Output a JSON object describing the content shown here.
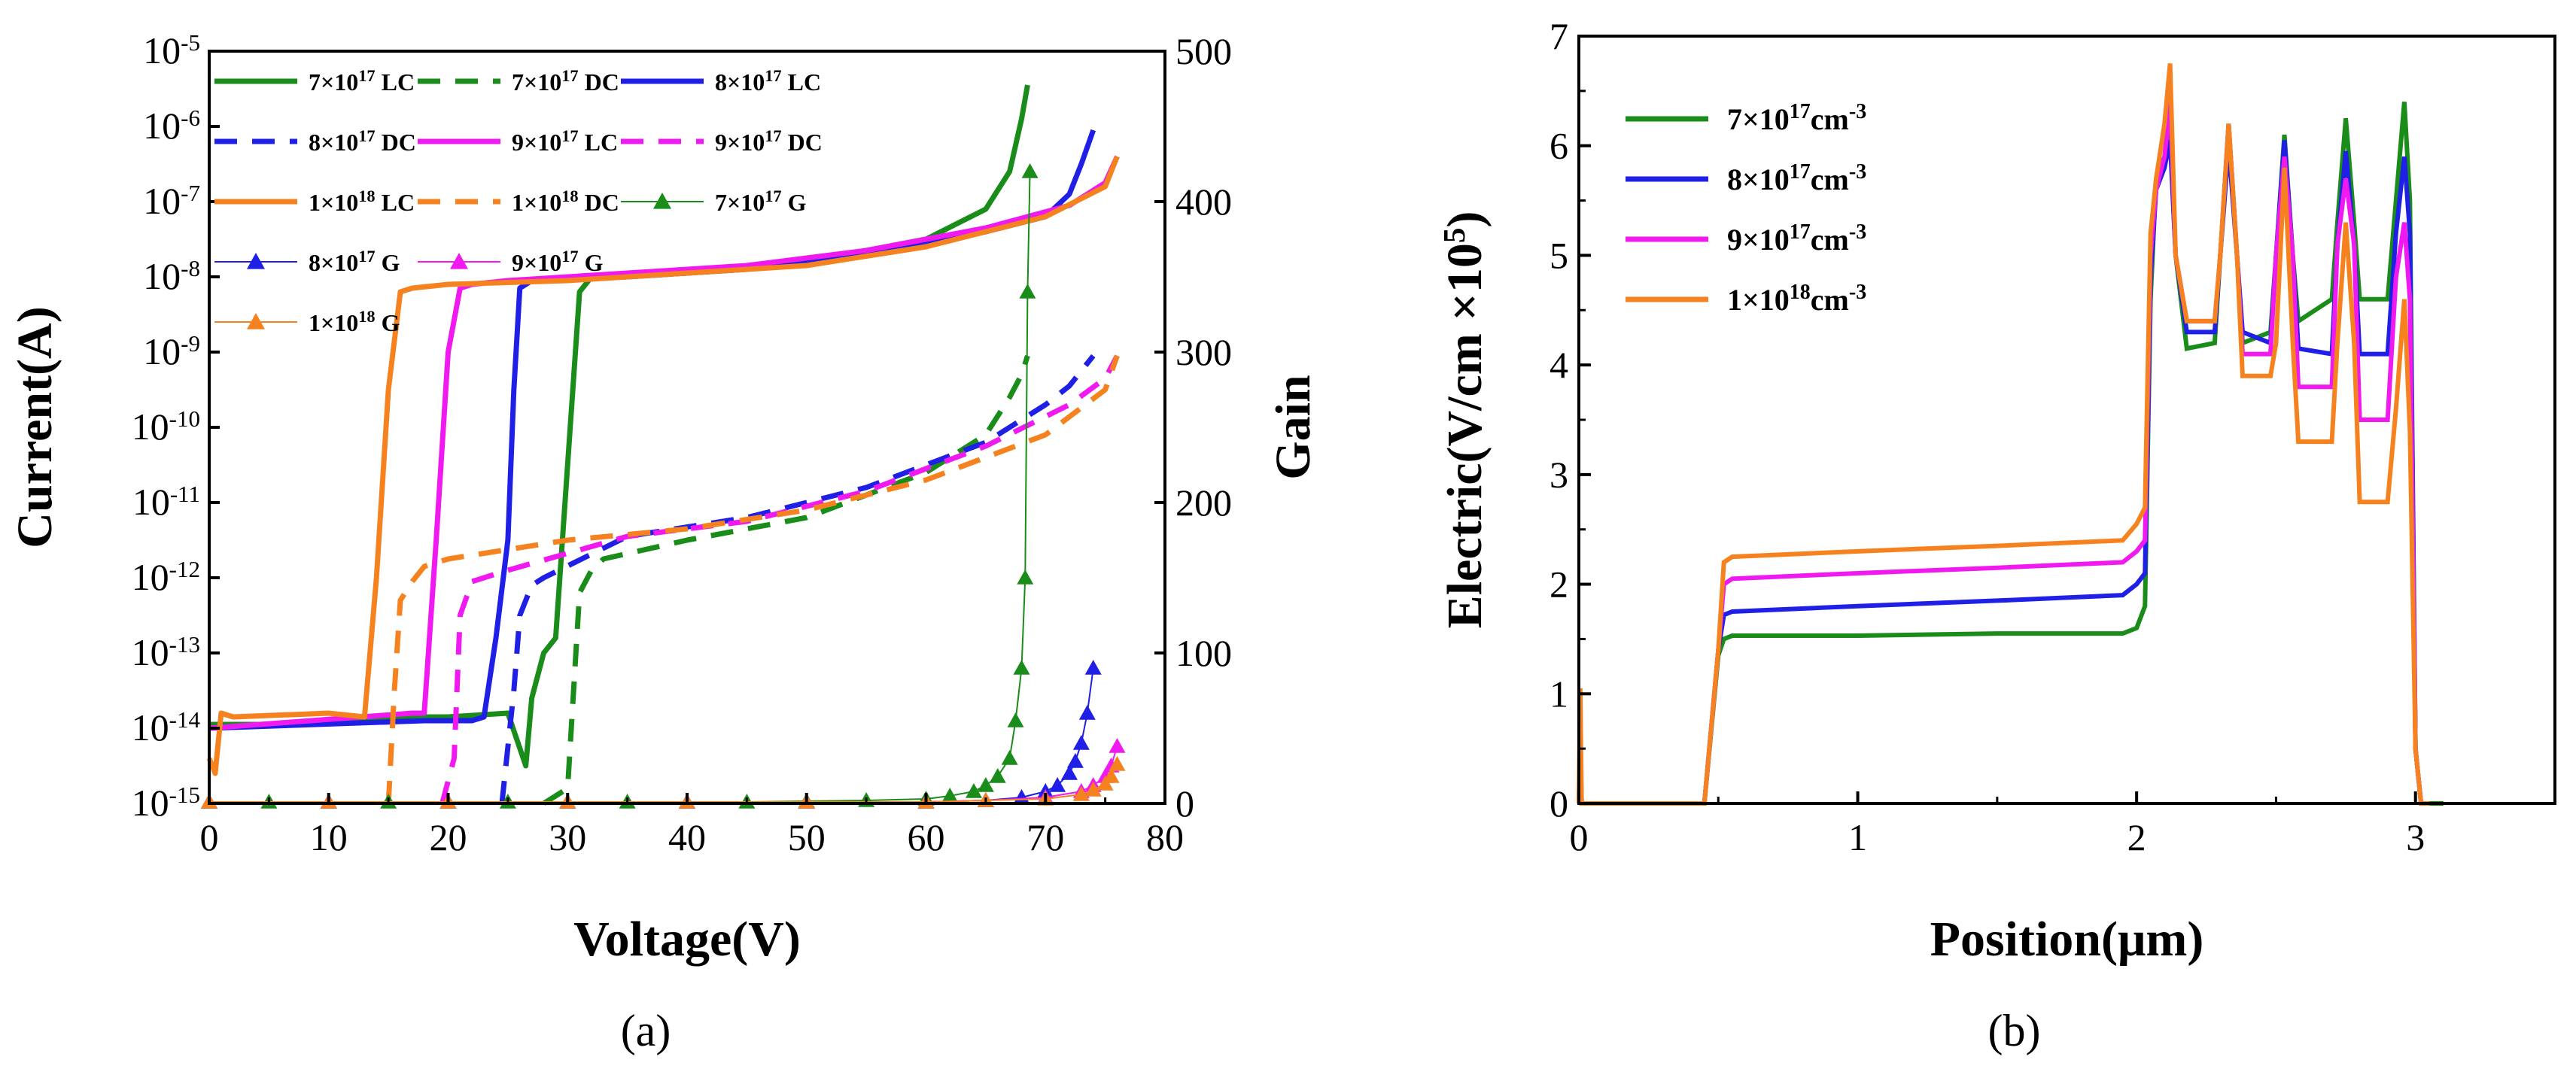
{
  "chart_data": [
    {
      "panel_label": "(a)",
      "type": "line",
      "xlabel": "Voltage(V)",
      "ylabel": "Current(A)",
      "y2label": "Gain",
      "xlim": [
        0,
        80
      ],
      "ylim_log10": [
        -15,
        -5
      ],
      "y2lim": [
        0,
        500
      ],
      "yscale": "log",
      "xticks": [
        "0",
        "10",
        "20",
        "30",
        "40",
        "50",
        "60",
        "70",
        "80"
      ],
      "yticks_exp": [
        "-15",
        "-14",
        "-13",
        "-12",
        "-11",
        "-10",
        "-9",
        "-8",
        "-7",
        "-6",
        "-5"
      ],
      "y2ticks": [
        "0",
        "100",
        "200",
        "300",
        "400",
        "500"
      ],
      "legend_position": "top-left",
      "legend": [
        {
          "base": "7×10",
          "exp": "17",
          "suffix": " LC",
          "color": "#1a8c1a",
          "style": "solid"
        },
        {
          "base": "7×10",
          "exp": "17",
          "suffix": " DC",
          "color": "#1a8c1a",
          "style": "dash"
        },
        {
          "base": "8×10",
          "exp": "17",
          "suffix": " LC",
          "color": "#1f1fe6",
          "style": "solid"
        },
        {
          "base": "8×10",
          "exp": "17",
          "suffix": " DC",
          "color": "#1f1fe6",
          "style": "dash"
        },
        {
          "base": "9×10",
          "exp": "17",
          "suffix": " LC",
          "color": "#f01af0",
          "style": "solid"
        },
        {
          "base": "9×10",
          "exp": "17",
          "suffix": " DC",
          "color": "#f01af0",
          "style": "dash"
        },
        {
          "base": "1×10",
          "exp": "18",
          "suffix": " LC",
          "color": "#f5821f",
          "style": "solid"
        },
        {
          "base": "1×10",
          "exp": "18",
          "suffix": " DC",
          "color": "#f5821f",
          "style": "dash"
        },
        {
          "base": "7×10",
          "exp": "17",
          "suffix": " G",
          "color": "#1a8c1a",
          "style": "triangle"
        },
        {
          "base": "8×10",
          "exp": "17",
          "suffix": " G",
          "color": "#1f1fe6",
          "style": "triangle"
        },
        {
          "base": "9×10",
          "exp": "17",
          "suffix": " G",
          "color": "#f01af0",
          "style": "triangle"
        },
        {
          "base": "1×10",
          "exp": "18",
          "suffix": " G",
          "color": "#f5821f",
          "style": "triangle"
        }
      ],
      "series": [
        {
          "name": "7×10^17 LC",
          "color": "#1a8c1a",
          "style": "solid",
          "x": [
            0,
            5,
            10,
            15,
            20,
            25,
            26.5,
            27,
            28,
            29,
            30,
            31,
            32,
            40,
            50,
            60,
            65,
            67,
            68,
            68.5
          ],
          "y_log10": [
            -13.95,
            -13.95,
            -13.9,
            -13.85,
            -13.85,
            -13.8,
            -14.5,
            -13.6,
            -13,
            -12.8,
            -10.5,
            -8.2,
            -8,
            -7.95,
            -7.8,
            -7.5,
            -7.1,
            -6.6,
            -5.9,
            -5.45
          ]
        },
        {
          "name": "7×10^17 DC",
          "color": "#1a8c1a",
          "style": "dash",
          "x": [
            28,
            30,
            30.5,
            31,
            32,
            33,
            40,
            50,
            60,
            65,
            67,
            68,
            68.5
          ],
          "y_log10": [
            -15,
            -14.8,
            -13.5,
            -12.2,
            -11.9,
            -11.75,
            -11.5,
            -11.2,
            -10.6,
            -10.1,
            -9.6,
            -9.3,
            -9.05
          ]
        },
        {
          "name": "8×10^17 LC",
          "color": "#1f1fe6",
          "style": "solid",
          "x": [
            0,
            18,
            22,
            23,
            24,
            25,
            25.5,
            26,
            27,
            35,
            45,
            55,
            65,
            70,
            72,
            73,
            74
          ],
          "y_log10": [
            -14,
            -13.9,
            -13.9,
            -13.85,
            -12.8,
            -11.5,
            -9.5,
            -8.15,
            -8.05,
            -8,
            -7.9,
            -7.7,
            -7.4,
            -7.2,
            -6.9,
            -6.5,
            -6.05
          ]
        },
        {
          "name": "8×10^17 DC",
          "color": "#1f1fe6",
          "style": "dash",
          "x": [
            24.5,
            25.5,
            26,
            27,
            28,
            35,
            45,
            55,
            65,
            70,
            72,
            74
          ],
          "y_log10": [
            -15,
            -13.5,
            -12.5,
            -12.1,
            -12,
            -11.45,
            -11.2,
            -10.8,
            -10.2,
            -9.7,
            -9.45,
            -9.05
          ]
        },
        {
          "name": "9×10^17 LC",
          "color": "#f01af0",
          "style": "solid",
          "x": [
            0,
            17,
            18,
            19,
            20,
            21,
            22,
            25,
            35,
            45,
            55,
            65,
            72,
            75,
            76
          ],
          "y_log10": [
            -14,
            -13.8,
            -13.8,
            -11.5,
            -9,
            -8.15,
            -8.1,
            -8.05,
            -7.95,
            -7.85,
            -7.65,
            -7.35,
            -7.05,
            -6.75,
            -6.4
          ]
        },
        {
          "name": "9×10^17 DC",
          "color": "#f01af0",
          "style": "dash",
          "x": [
            19.5,
            20.5,
            21,
            22,
            25,
            35,
            45,
            55,
            65,
            72,
            75,
            76
          ],
          "y_log10": [
            -15,
            -14.4,
            -12.5,
            -12.05,
            -11.9,
            -11.45,
            -11.25,
            -10.85,
            -10.25,
            -9.7,
            -9.35,
            -9.05
          ]
        },
        {
          "name": "1×10^18 LC",
          "color": "#f5821f",
          "style": "solid",
          "x": [
            0,
            0.5,
            1,
            2,
            10,
            13,
            14,
            15,
            16,
            17,
            20,
            30,
            40,
            50,
            60,
            70,
            75,
            76
          ],
          "y_log10": [
            -14.4,
            -14.6,
            -13.8,
            -13.85,
            -13.8,
            -13.85,
            -12,
            -9.5,
            -8.2,
            -8.15,
            -8.1,
            -8.05,
            -7.95,
            -7.85,
            -7.6,
            -7.2,
            -6.8,
            -6.4
          ]
        },
        {
          "name": "1×10^18 DC",
          "color": "#f5821f",
          "style": "dash",
          "x": [
            15,
            15.5,
            16,
            17,
            18,
            20,
            30,
            40,
            50,
            60,
            70,
            75,
            76
          ],
          "y_log10": [
            -15,
            -13.5,
            -12.3,
            -12.05,
            -11.85,
            -11.75,
            -11.5,
            -11.35,
            -11.1,
            -10.7,
            -10.1,
            -9.5,
            -9.05
          ]
        },
        {
          "name": "7×10^17 G",
          "color": "#1a8c1a",
          "style": "triangle",
          "x": [
            0,
            5,
            10,
            15,
            20,
            25,
            30,
            35,
            40,
            45,
            50,
            55,
            60,
            62,
            64,
            65,
            66,
            67,
            67.5,
            68,
            68.3,
            68.5,
            68.7
          ],
          "gain": [
            1,
            1,
            1,
            1,
            1,
            1,
            1,
            1,
            1,
            1,
            1.5,
            2,
            3,
            5,
            8,
            12,
            18,
            30,
            55,
            90,
            150,
            340,
            420
          ]
        },
        {
          "name": "8×10^17 G",
          "color": "#1f1fe6",
          "style": "triangle",
          "x": [
            0,
            10,
            20,
            30,
            40,
            50,
            60,
            65,
            68,
            70,
            71,
            72,
            72.5,
            73,
            73.5,
            74
          ],
          "gain": [
            1,
            1,
            1,
            1,
            1,
            1,
            1,
            2,
            4,
            8,
            12,
            20,
            28,
            40,
            60,
            90
          ]
        },
        {
          "name": "9×10^17 G",
          "color": "#f01af0",
          "style": "triangle",
          "x": [
            0,
            10,
            20,
            30,
            40,
            50,
            60,
            65,
            70,
            73,
            74,
            75,
            75.5,
            76
          ],
          "gain": [
            1,
            1,
            1,
            1,
            1,
            1,
            1,
            2,
            4,
            8,
            12,
            18,
            25,
            38
          ]
        },
        {
          "name": "1×10^18 G",
          "color": "#f5821f",
          "style": "triangle",
          "x": [
            0,
            10,
            20,
            30,
            40,
            50,
            60,
            65,
            70,
            73,
            74,
            75,
            75.5,
            76
          ],
          "gain": [
            1,
            1,
            1,
            1,
            1,
            1,
            1,
            2,
            3,
            6,
            9,
            13,
            18,
            26
          ]
        }
      ]
    },
    {
      "panel_label": "(b)",
      "type": "line",
      "xlabel": "Position(μm)",
      "ylabel_base": "Electric(V/cm ×10",
      "ylabel_exp": "5",
      "ylabel_end": ")",
      "xlim": [
        0,
        3.5
      ],
      "ylim": [
        0,
        7
      ],
      "xticks": [
        "0",
        "1",
        "2",
        "3"
      ],
      "yticks": [
        "0",
        "1",
        "2",
        "3",
        "4",
        "5",
        "6",
        "7"
      ],
      "legend_position": "top-left",
      "legend": [
        {
          "base": "7×10",
          "exp": "17",
          "suffix": "cm",
          "exp2": "-3",
          "color": "#1a8c1a"
        },
        {
          "base": "8×10",
          "exp": "17",
          "suffix": "cm",
          "exp2": "-3",
          "color": "#1f1fe6"
        },
        {
          "base": "9×10",
          "exp": "17",
          "suffix": "cm",
          "exp2": "-3",
          "color": "#f01af0"
        },
        {
          "base": "1×10",
          "exp": "18",
          "suffix": "cm",
          "exp2": "-3",
          "color": "#f5821f"
        }
      ],
      "series": [
        {
          "name": "7×10^17cm^-3",
          "color": "#1a8c1a",
          "x": [
            0,
            0.005,
            0.01,
            0.015,
            0.02,
            0.45,
            0.5,
            0.52,
            0.55,
            1.0,
            1.5,
            1.95,
            2.0,
            2.03,
            2.05,
            2.07,
            2.1,
            2.12,
            2.14,
            2.18,
            2.28,
            2.3,
            2.33,
            2.36,
            2.38,
            2.48,
            2.5,
            2.53,
            2.56,
            2.58,
            2.7,
            2.72,
            2.75,
            2.78,
            2.8,
            2.9,
            2.93,
            2.96,
            2.98,
            3.0,
            3.02,
            3.05,
            3.1
          ],
          "y": [
            0,
            0.5,
            0,
            0,
            0,
            0,
            1.35,
            1.5,
            1.53,
            1.53,
            1.55,
            1.55,
            1.6,
            1.8,
            4.6,
            5.7,
            5.9,
            6.1,
            5.0,
            4.15,
            4.2,
            5.0,
            6.2,
            5.0,
            4.2,
            4.3,
            5.0,
            6.1,
            5.0,
            4.4,
            4.6,
            5.3,
            6.25,
            5.3,
            4.6,
            4.6,
            5.5,
            6.4,
            5.5,
            0.5,
            0,
            0,
            0
          ]
        },
        {
          "name": "8×10^17cm^-3",
          "color": "#1f1fe6",
          "x": [
            0,
            0.005,
            0.01,
            0.45,
            0.5,
            0.52,
            0.55,
            1.0,
            1.5,
            1.95,
            2.0,
            2.03,
            2.05,
            2.07,
            2.1,
            2.12,
            2.14,
            2.18,
            2.28,
            2.3,
            2.33,
            2.36,
            2.38,
            2.48,
            2.5,
            2.53,
            2.56,
            2.58,
            2.7,
            2.72,
            2.75,
            2.78,
            2.8,
            2.9,
            2.93,
            2.96,
            2.98,
            3.0,
            3.02,
            3.05
          ],
          "y": [
            0,
            0.5,
            0,
            0,
            1.4,
            1.72,
            1.75,
            1.8,
            1.85,
            1.9,
            2.0,
            2.1,
            4.8,
            5.6,
            5.8,
            6.05,
            5.0,
            4.3,
            4.3,
            5.0,
            6.0,
            5.0,
            4.3,
            4.2,
            5.0,
            6.05,
            5.0,
            4.15,
            4.1,
            5.1,
            5.95,
            5.1,
            4.1,
            4.1,
            5.2,
            5.9,
            5.2,
            0.5,
            0,
            0
          ]
        },
        {
          "name": "9×10^17cm^-3",
          "color": "#f01af0",
          "x": [
            0,
            0.005,
            0.01,
            0.45,
            0.5,
            0.52,
            0.55,
            1.0,
            1.5,
            1.95,
            2.0,
            2.03,
            2.05,
            2.07,
            2.1,
            2.12,
            2.14,
            2.18,
            2.28,
            2.3,
            2.33,
            2.36,
            2.38,
            2.48,
            2.5,
            2.53,
            2.56,
            2.58,
            2.7,
            2.72,
            2.75,
            2.78,
            2.8,
            2.9,
            2.93,
            2.96,
            2.98,
            3.0,
            3.02,
            3.05
          ],
          "y": [
            0,
            0.5,
            0,
            0,
            1.4,
            2.0,
            2.05,
            2.1,
            2.15,
            2.2,
            2.3,
            2.4,
            5.0,
            5.6,
            5.9,
            6.4,
            5.0,
            4.4,
            4.4,
            5.0,
            6.2,
            5.0,
            4.1,
            4.1,
            5.0,
            5.9,
            5.0,
            3.8,
            3.8,
            5.1,
            5.7,
            5.1,
            3.5,
            3.5,
            4.8,
            5.3,
            4.6,
            0.5,
            0,
            0
          ]
        },
        {
          "name": "1×10^18cm^-3",
          "color": "#f5821f",
          "x": [
            0,
            0.005,
            0.01,
            0.45,
            0.5,
            0.52,
            0.55,
            1.0,
            1.5,
            1.95,
            2.0,
            2.03,
            2.05,
            2.07,
            2.1,
            2.12,
            2.14,
            2.18,
            2.28,
            2.3,
            2.33,
            2.36,
            2.38,
            2.48,
            2.5,
            2.53,
            2.56,
            2.58,
            2.7,
            2.72,
            2.75,
            2.78,
            2.8,
            2.9,
            2.93,
            2.96,
            2.98,
            3.0,
            3.02,
            3.05
          ],
          "y": [
            0,
            1.05,
            0,
            0,
            1.4,
            2.2,
            2.25,
            2.3,
            2.35,
            2.4,
            2.55,
            2.7,
            5.2,
            5.7,
            6.2,
            6.75,
            5.0,
            4.4,
            4.4,
            5.0,
            6.2,
            5.0,
            3.9,
            3.9,
            4.2,
            5.8,
            4.2,
            3.3,
            3.3,
            4.2,
            5.3,
            4.2,
            2.75,
            2.75,
            3.6,
            4.6,
            3.4,
            0.5,
            0,
            0
          ]
        }
      ]
    }
  ]
}
